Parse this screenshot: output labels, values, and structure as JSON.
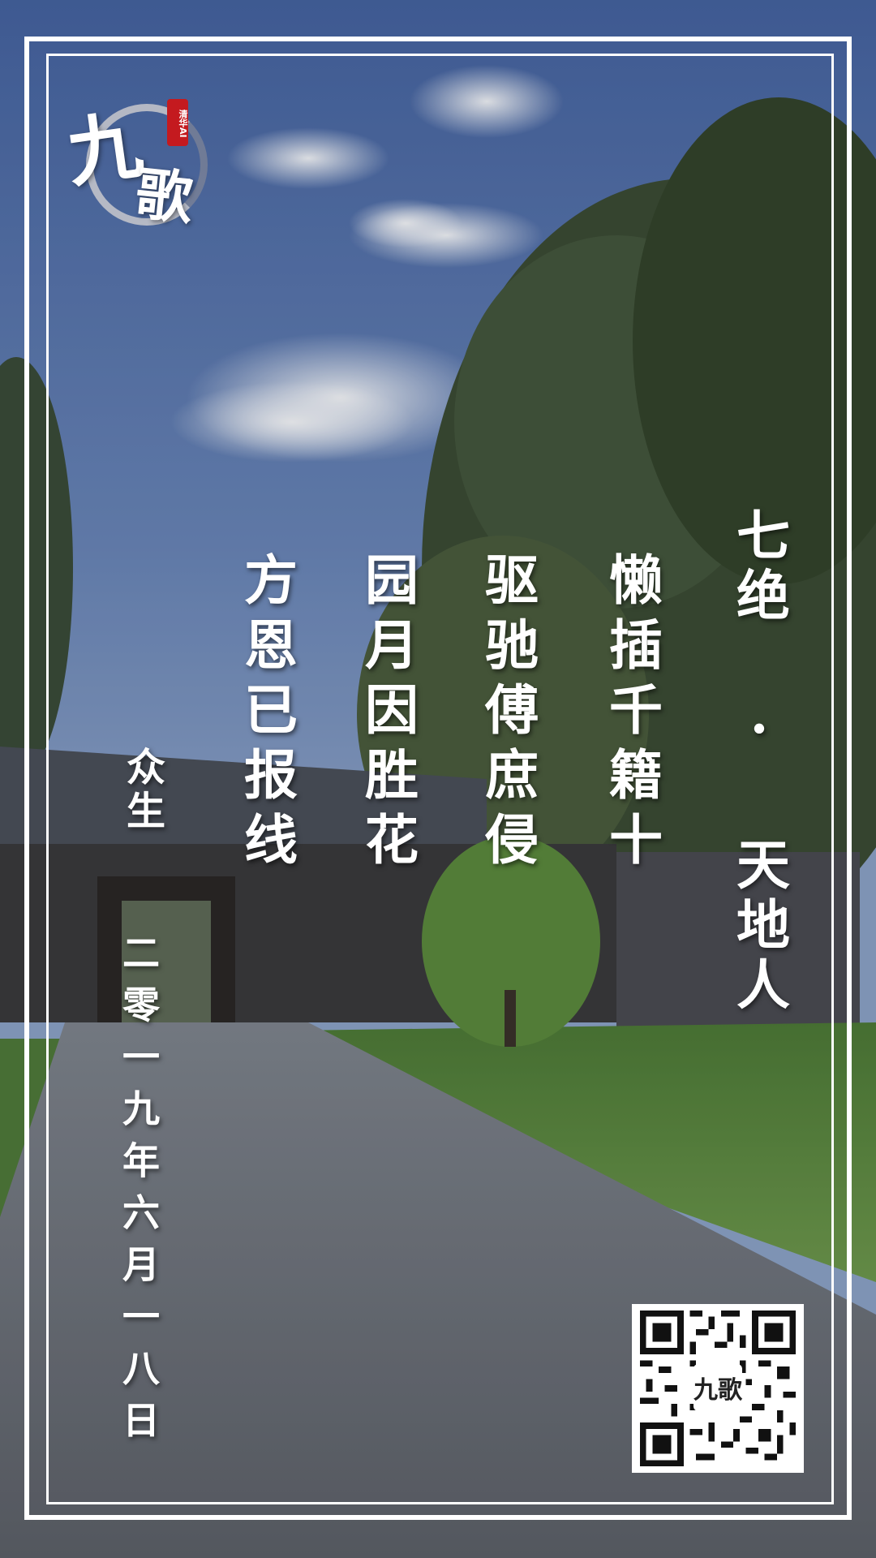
{
  "logo": {
    "main_char": "九",
    "second_char": "歌",
    "seal_text": "清华AI",
    "seal_color": "#c41a1f"
  },
  "poem": {
    "title": "七绝 · 天地人",
    "lines": [
      "懒插千籍十",
      "驱驰傅庶侵",
      "园月因胜花",
      "方恩已报线"
    ],
    "author": "众生",
    "date": "二零一九年六月一八日"
  },
  "qr": {
    "center_char": "九歌",
    "icon": "qr-code"
  },
  "colors": {
    "text": "#ffffff",
    "frame": "#ffffff",
    "sky": "#5a75a8",
    "foliage": "#35452c",
    "lawn": "#5f8a3c",
    "pavement": "#6d6f74"
  }
}
